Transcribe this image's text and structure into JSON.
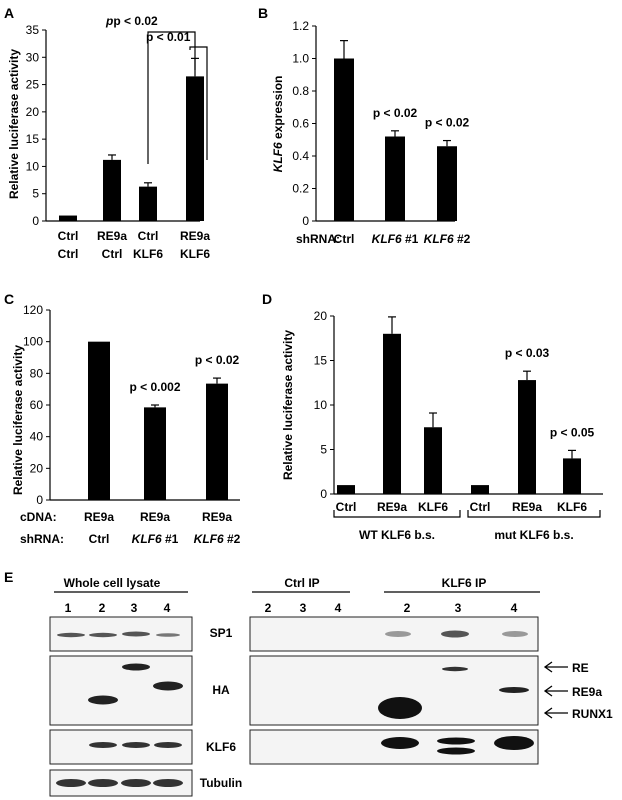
{
  "panels": {
    "A": {
      "letter": "A",
      "ylabel": "Relative luciferase activity",
      "chart_data": {
        "type": "bar",
        "categories": [
          [
            "Ctrl",
            "Ctrl"
          ],
          [
            "RE9a",
            "Ctrl"
          ],
          [
            "Ctrl",
            "KLF6"
          ],
          [
            "RE9a",
            "KLF6"
          ]
        ],
        "values": [
          1,
          11.2,
          6.3,
          26.5
        ],
        "errors": [
          0,
          0.9,
          0.7,
          3.3
        ],
        "ylim": [
          0,
          35
        ],
        "yticks": [
          0,
          5,
          10,
          15,
          20,
          25,
          30,
          35
        ],
        "annotations": [
          "p < 0.02",
          "p < 0.01"
        ]
      }
    },
    "B": {
      "letter": "B",
      "ylabel_italic": "KLF6",
      "ylabel_rest": " expression",
      "row_label": "shRNA:",
      "chart_data": {
        "type": "bar",
        "categories": [
          {
            "it": "",
            "rest": "Ctrl"
          },
          {
            "it": "KLF6",
            "rest": " #1"
          },
          {
            "it": "KLF6",
            "rest": " #2"
          }
        ],
        "values": [
          1.0,
          0.52,
          0.46
        ],
        "errors": [
          0.11,
          0.035,
          0.035
        ],
        "ylim": [
          0,
          1.2
        ],
        "yticks": [
          "0",
          "0.2",
          "0.4",
          "0.6",
          "0.8",
          "1.0",
          "1.2"
        ],
        "annotations": [
          "",
          "p < 0.02",
          "p < 0.02"
        ]
      }
    },
    "C": {
      "letter": "C",
      "ylabel": "Relative luciferase activity",
      "row_labels": [
        "cDNA:",
        "shRNA:"
      ],
      "chart_data": {
        "type": "bar",
        "row1": [
          "RE9a",
          "RE9a",
          "RE9a"
        ],
        "row2": [
          {
            "it": "",
            "rest": "Ctrl"
          },
          {
            "it": "KLF6",
            "rest": " #1"
          },
          {
            "it": "KLF6",
            "rest": " #2"
          }
        ],
        "values": [
          100,
          58.5,
          73.5
        ],
        "errors": [
          0,
          1.5,
          3.5
        ],
        "ylim": [
          0,
          120
        ],
        "yticks": [
          0,
          20,
          40,
          60,
          80,
          100,
          120
        ],
        "annotations": [
          "",
          "p < 0.002",
          "p < 0.02"
        ]
      }
    },
    "D": {
      "letter": "D",
      "ylabel": "Relative luciferase activity",
      "chart_data": {
        "type": "bar",
        "categories": [
          "Ctrl",
          "RE9a",
          "KLF6",
          "Ctrl",
          "RE9a",
          "KLF6"
        ],
        "groups": [
          "WT KLF6 b.s.",
          "mut KLF6 b.s."
        ],
        "values": [
          1,
          18,
          7.5,
          1,
          12.8,
          4
        ],
        "errors": [
          0,
          1.9,
          1.6,
          0,
          1.0,
          0.9
        ],
        "ylim": [
          0,
          20
        ],
        "yticks": [
          0,
          5,
          10,
          15,
          20
        ],
        "annotations": [
          "",
          "",
          "",
          "",
          "p < 0.03",
          "p < 0.05"
        ]
      }
    },
    "E": {
      "letter": "E",
      "whole_cell_title": "Whole cell lysate",
      "whole_lanes": [
        "1",
        "2",
        "3",
        "4"
      ],
      "ctrl_ip_title": "Ctrl IP",
      "ctrl_lanes": [
        "2",
        "3",
        "4"
      ],
      "klf6_ip_title": "KLF6 IP",
      "klf6_lanes": [
        "2",
        "3",
        "4"
      ],
      "row_labels": [
        "SP1",
        "HA",
        "KLF6",
        "Tubulin"
      ],
      "arrows": [
        "RE",
        "RE9a",
        "RUNX1"
      ]
    }
  }
}
